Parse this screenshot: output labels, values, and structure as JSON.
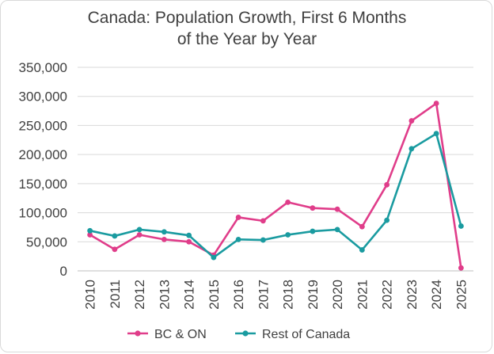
{
  "chart_data": {
    "type": "line",
    "title_line1": "Canada: Population Growth, First 6 Months",
    "title_line2": "of the Year by Year",
    "categories": [
      "2010",
      "2011",
      "2012",
      "2013",
      "2014",
      "2015",
      "2016",
      "2017",
      "2018",
      "2019",
      "2020",
      "2021",
      "2022",
      "2023",
      "2024",
      "2025"
    ],
    "y_ticks": [
      "0",
      "50,000",
      "100,000",
      "150,000",
      "200,000",
      "250,000",
      "300,000",
      "350,000"
    ],
    "ylim": [
      0,
      350000
    ],
    "gridlines": true,
    "legend_position": "bottom",
    "series": [
      {
        "name": "BC & ON",
        "color": "#e03d8a",
        "values": [
          62000,
          37000,
          62000,
          54000,
          50000,
          27000,
          92000,
          86000,
          118000,
          108000,
          106000,
          76000,
          148000,
          258000,
          288000,
          5000
        ]
      },
      {
        "name": "Rest of Canada",
        "color": "#1a9ba0",
        "values": [
          69000,
          60000,
          71000,
          67000,
          61000,
          23000,
          54000,
          53000,
          62000,
          68000,
          71000,
          36000,
          87000,
          210000,
          236000,
          77000
        ]
      }
    ]
  }
}
